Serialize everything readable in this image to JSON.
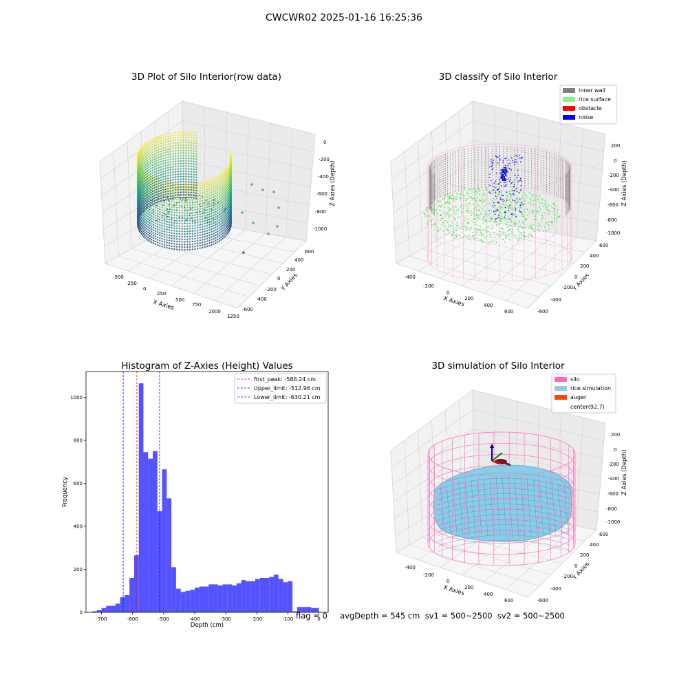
{
  "figure": {
    "suptitle": "CWCWR02 2025-01-16 16:25:36",
    "footer": "flag = 0     avgDepth = 545 cm  sv1 = 500~2500  sv2 = 500~2500"
  },
  "panels": {
    "raw": {
      "title": "3D Plot of Silo Interior(row data)",
      "xlabel": "X Axies",
      "ylabel": "Y Axies",
      "zlabel": "Z Axies (Depth)",
      "xticks": [
        "-500",
        "-250",
        "0",
        "250",
        "500",
        "750",
        "1000",
        "1250"
      ],
      "yticks": [
        "-600",
        "-400",
        "-200",
        "0",
        "200",
        "400",
        "600"
      ],
      "zticks": [
        "-1000",
        "-800",
        "-600",
        "-400",
        "-200",
        "0"
      ]
    },
    "classify": {
      "title": "3D classify of Silo Interior",
      "xlabel": "X Axies",
      "ylabel": "Y Axies",
      "zlabel": "Z Axies (Depth)",
      "xticks": [
        "-400",
        "-200",
        "0",
        "200",
        "400",
        "600"
      ],
      "yticks": [
        "-600",
        "-400",
        "-200",
        "0",
        "200",
        "400",
        "600"
      ],
      "zticks": [
        "-1000",
        "-800",
        "-600",
        "-400",
        "-200",
        "0",
        "200"
      ],
      "legend": [
        {
          "label": "inner wall",
          "color": "#808080"
        },
        {
          "label": "rice surface",
          "color": "#90ee90"
        },
        {
          "label": "obstacle",
          "color": "#ff0000"
        },
        {
          "label": "noise",
          "color": "#0000ff"
        }
      ]
    },
    "simulation": {
      "title": "3D simulation of Silo Interior",
      "xlabel": "X Axies",
      "ylabel": "Y Axies",
      "zlabel": "Z Axies (Depth)",
      "xticks": [
        "-400",
        "-200",
        "0",
        "200",
        "400",
        "600"
      ],
      "yticks": [
        "-600",
        "-400",
        "-200",
        "0",
        "200",
        "400",
        "600"
      ],
      "zticks": [
        "-1000",
        "-800",
        "-600",
        "-400",
        "-200",
        "0",
        "200"
      ],
      "legend": [
        {
          "label": "silo",
          "color": "#ff69b4"
        },
        {
          "label": "rice simulation",
          "color": "#87ceeb"
        },
        {
          "label": "auger",
          "color": "#ff4500"
        },
        {
          "label": "center(92,7)",
          "color": "#ffffff"
        }
      ]
    }
  },
  "chart_data": {
    "type": "bar",
    "title": "Histogram of Z-Axies (Height) Values",
    "xlabel": "Depth (cm)",
    "ylabel": "Frequency",
    "xlim": [
      -750,
      30
    ],
    "ylim": [
      0,
      1120
    ],
    "xticks": [
      -700,
      -600,
      -500,
      -400,
      -300,
      -200,
      -100,
      0
    ],
    "yticks": [
      0,
      200,
      400,
      600,
      800,
      1000
    ],
    "bar_color": "#4b4bff",
    "bin_edges": [
      -730,
      -715,
      -700,
      -685,
      -670,
      -655,
      -640,
      -625,
      -610,
      -595,
      -580,
      -565,
      -550,
      -535,
      -520,
      -505,
      -490,
      -475,
      -460,
      -445,
      -430,
      -415,
      -400,
      -385,
      -370,
      -355,
      -340,
      -325,
      -310,
      -295,
      -280,
      -265,
      -250,
      -235,
      -220,
      -205,
      -190,
      -175,
      -160,
      -145,
      -130,
      -115,
      -100,
      -85,
      -70,
      -55,
      -40,
      -25,
      0
    ],
    "counts": [
      5,
      10,
      20,
      30,
      30,
      40,
      70,
      80,
      160,
      265,
      1065,
      745,
      715,
      750,
      470,
      665,
      530,
      210,
      110,
      95,
      100,
      105,
      115,
      120,
      120,
      130,
      130,
      125,
      130,
      130,
      125,
      135,
      150,
      145,
      145,
      155,
      160,
      160,
      165,
      175,
      155,
      140,
      145,
      5,
      25,
      25,
      25,
      20
    ],
    "reference_lines": [
      {
        "label": "first_peak: -586.24 cm",
        "x": -586.24,
        "color": "#ff0000"
      },
      {
        "label": "Upper_limit: -512.96 cm",
        "x": -512.96,
        "color": "#0000ff"
      },
      {
        "label": "Lower_limit: -630.21 cm",
        "x": -630.21,
        "color": "#0000ff"
      }
    ],
    "legend_position": "upper right"
  }
}
